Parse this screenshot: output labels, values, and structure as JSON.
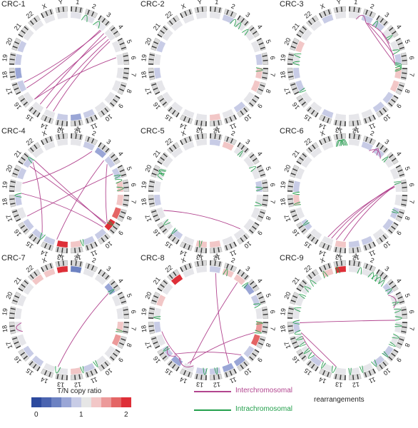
{
  "colors": {
    "inter": "#b2458f",
    "intra": "#23a04c",
    "scale": [
      "#2d4a9e",
      "#4b64b0",
      "#6d82c2",
      "#9aa6d6",
      "#c8cce6",
      "#e6e6e6",
      "#f2c7c7",
      "#ec9a9a",
      "#e46565",
      "#de2f38"
    ]
  },
  "chromosomes": [
    "1",
    "2",
    "3",
    "4",
    "5",
    "6",
    "7",
    "8",
    "9",
    "10",
    "11",
    "12",
    "13",
    "14",
    "15",
    "16",
    "17",
    "18",
    "19",
    "20",
    "21",
    "22",
    "X",
    "Y"
  ],
  "panels": [
    {
      "title": "CRC-1",
      "cn": [
        "#e3e3ea",
        "#e2e2ea",
        "#e8e8ee",
        "#e6e6ea",
        "#e6e6ea",
        "#e6e6ea",
        "#e6e6ea",
        "#e6e6ea",
        "#e6e6ea",
        "#e6e6ea",
        "#c9cde6",
        "#9aa6d6",
        "#c8cce6",
        "#e6e6ea",
        "#e6e6ea",
        "#e6e6ea",
        "#c8cce6",
        "#9aa6d6",
        "#c8cce6",
        "#c8cce6",
        "#e6e6ea",
        "#e6e6ea",
        "#e6e6ea",
        "#e6e6ea"
      ],
      "inter": [
        [
          2.6,
          14.0
        ],
        [
          2.3,
          16.2
        ],
        [
          2.9,
          14.6
        ],
        [
          3.4,
          12.8
        ],
        [
          4.8,
          14.6
        ],
        [
          2.2,
          15.7
        ],
        [
          3.2,
          13.4
        ]
      ],
      "intra": [
        [
          0.5,
          0.95
        ],
        [
          1.5,
          2.0
        ]
      ]
    },
    {
      "title": "CRC-2",
      "cn": [
        "#e6e6ea",
        "#c8cce6",
        "#e6e6ea",
        "#e6e6ea",
        "#e6e6ea",
        "#c8cce6",
        "#f2c7c7",
        "#f2c7c7",
        "#e6e6ea",
        "#c8cce6",
        "#e6e6ea",
        "#f2c7c7",
        "#e6e6ea",
        "#e6e6ea",
        "#e6e6ea",
        "#e6e6ea",
        "#e6e6ea",
        "#c8cce6",
        "#e6e6ea",
        "#c8cce6",
        "#e6e6ea",
        "#e6e6ea",
        "#e6e6ea",
        "#e6e6ea"
      ],
      "inter": [],
      "intra": [
        [
          1.3,
          1.7
        ],
        [
          2.5,
          2.8
        ],
        [
          5.6,
          5.9
        ],
        [
          1.8,
          2.1
        ]
      ]
    },
    {
      "title": "CRC-3",
      "cn": [
        "#e6e6ea",
        "#c8cce6",
        "#c8cce6",
        "#e6e6ea",
        "#e6e6ea",
        "#c8cce6",
        "#f2c7c7",
        "#f2c7c7",
        "#c8cce6",
        "#c8cce6",
        "#e6e6ea",
        "#e6e6ea",
        "#e6e6ea",
        "#c8cce6",
        "#e6e6ea",
        "#e6e6ea",
        "#c8cce6",
        "#c8cce6",
        "#e6e6ea",
        "#f2c7c7",
        "#e6e6ea",
        "#e6e6ea",
        "#c8cce6",
        "#e6e6ea"
      ],
      "inter": [
        [
          1.0,
          5.3
        ],
        [
          0.2,
          1.0
        ],
        [
          1.2,
          3.6
        ],
        [
          2.6,
          5.4
        ],
        [
          1.1,
          4.6
        ]
      ],
      "intra": [
        [
          5.2,
          5.6
        ],
        [
          5.4,
          5.9
        ],
        [
          5.3,
          5.8
        ],
        [
          4.2,
          4.5
        ],
        [
          3.1,
          3.3
        ],
        [
          18.2,
          18.5
        ],
        [
          17.6,
          17.9
        ],
        [
          15.5,
          15.7
        ],
        [
          1.6,
          1.9
        ]
      ]
    },
    {
      "title": "CRC-4",
      "cn": [
        "#e6e6ea",
        "#c8cce6",
        "#9aa6d6",
        "#c8cce6",
        "#c8cce6",
        "#f2c7c7",
        "#f2c7c7",
        "#e46565",
        "#de2f38",
        "#c8cce6",
        "#c8cce6",
        "#f2c7c7",
        "#de2f38",
        "#c8cce6",
        "#c8cce6",
        "#c8cce6",
        "#e6e6ea",
        "#c8cce6",
        "#e6e6ea",
        "#c8cce6",
        "#c8cce6",
        "#e6e6ea",
        "#e6e6ea",
        "#e6e6ea"
      ],
      "inter": [
        [
          2.6,
          12.5
        ],
        [
          3.9,
          15.6
        ],
        [
          8.1,
          19.8
        ],
        [
          8.2,
          20.4
        ],
        [
          1.4,
          18.3
        ],
        [
          13.8,
          20.2
        ],
        [
          8.5,
          17.5
        ],
        [
          3.0,
          8.0
        ]
      ],
      "intra": [
        [
          4.4,
          4.7
        ],
        [
          5.0,
          5.3
        ],
        [
          4.1,
          4.3
        ],
        [
          7.8,
          8.0
        ],
        [
          13.5,
          13.8
        ],
        [
          17.2,
          17.5
        ],
        [
          10.4,
          10.6
        ],
        [
          20.1,
          20.4
        ]
      ]
    },
    {
      "title": "CRC-5",
      "cn": [
        "#c8cce6",
        "#f2c7c7",
        "#e6e6ea",
        "#e6e6ea",
        "#e6e6ea",
        "#c8cce6",
        "#e6e6ea",
        "#e6e6ea",
        "#e6e6ea",
        "#e6e6ea",
        "#e6e6ea",
        "#f2c7c7",
        "#f2c7c7",
        "#e6e6ea",
        "#c8cce6",
        "#e6e6ea",
        "#e6e6ea",
        "#c8cce6",
        "#e6e6ea",
        "#e6e6ea",
        "#e6e6ea",
        "#e6e6ea",
        "#e6e6ea",
        "#e6e6ea"
      ],
      "inter": [
        [
          16.1,
          8.7
        ]
      ],
      "intra": [
        [
          18.6,
          19.1
        ],
        [
          19.0,
          19.4
        ],
        [
          18.9,
          19.3
        ],
        [
          3.4,
          3.7
        ],
        [
          5.0,
          5.3
        ],
        [
          6.2,
          6.5
        ],
        [
          15.0,
          15.3
        ],
        [
          14.2,
          14.4
        ],
        [
          2.0,
          2.2
        ],
        [
          12.0,
          12.2
        ]
      ]
    },
    {
      "title": "CRC-6",
      "cn": [
        "#e6e6ea",
        "#c8cce6",
        "#c8cce6",
        "#e6e6ea",
        "#e6e6ea",
        "#e6e6ea",
        "#e6e6ea",
        "#c8cce6",
        "#c8cce6",
        "#e6e6ea",
        "#c8cce6",
        "#c8cce6",
        "#f2c7c7",
        "#e6e6ea",
        "#e6e6ea",
        "#c8cce6",
        "#e6e6ea",
        "#f2c7c7",
        "#c8cce6",
        "#e6e6ea",
        "#e6e6ea",
        "#e6e6ea",
        "#e6e6ea",
        "#e6e6ea"
      ],
      "inter": [
        [
          4.9,
          12.8
        ],
        [
          4.9,
          12.4
        ],
        [
          5.0,
          13.1
        ],
        [
          4.9,
          11.8
        ],
        [
          1.3,
          2.4
        ],
        [
          1.6,
          2.0
        ]
      ],
      "intra": [
        [
          22.6,
          23.2
        ],
        [
          22.9,
          23.4
        ],
        [
          23.0,
          23.5
        ],
        [
          22.7,
          23.3
        ],
        [
          15.0,
          15.2
        ],
        [
          16.6,
          16.8
        ],
        [
          4.6,
          4.8
        ],
        [
          2.6,
          2.8
        ],
        [
          6.8,
          7.0
        ],
        [
          17.4,
          17.6
        ]
      ]
    },
    {
      "title": "CRC-7",
      "cn": [
        "#6d82c2",
        "#e6e6ea",
        "#e6e6ea",
        "#9aa6d6",
        "#e6e6ea",
        "#e6e6ea",
        "#f2c7c7",
        "#ec9a9a",
        "#e6e6ea",
        "#e6e6ea",
        "#c8cce6",
        "#f2c7c7",
        "#e6e6ea",
        "#e6e6ea",
        "#c8cce6",
        "#c8cce6",
        "#e6e6ea",
        "#e6e6ea",
        "#e6e6ea",
        "#e6e6ea",
        "#e6e6ea",
        "#f2c7c7",
        "#f2c7c7",
        "#de2f38"
      ],
      "inter": [
        [
          12.4,
          3.2
        ],
        [
          16.6,
          17.3
        ]
      ],
      "intra": [
        [
          12.2,
          12.6
        ],
        [
          3.1,
          3.3
        ],
        [
          9.3,
          9.5
        ],
        [
          10.4,
          10.6
        ],
        [
          6.2,
          6.4
        ]
      ]
    },
    {
      "title": "CRC-8",
      "cn": [
        "#c8cce6",
        "#f2c7c7",
        "#f2c7c7",
        "#9aa6d6",
        "#c8cce6",
        "#e6e6ea",
        "#ec9a9a",
        "#e46565",
        "#c8cce6",
        "#9aa6d6",
        "#9aa6d6",
        "#c8cce6",
        "#c8cce6",
        "#e6e6ea",
        "#9aa6d6",
        "#c8cce6",
        "#e6e6ea",
        "#c8cce6",
        "#e6e6ea",
        "#f2c7c7",
        "#e6e6ea",
        "#de2f38",
        "#e6e6ea",
        "#e6e6ea"
      ],
      "inter": [
        [
          0.1,
          9.8
        ],
        [
          14.5,
          8.6
        ],
        [
          13.8,
          16.6
        ],
        [
          14.0,
          12.7
        ],
        [
          13.2,
          6.5
        ],
        [
          2.0,
          13.0
        ],
        [
          14.3,
          15.3
        ]
      ],
      "intra": [
        [
          4.2,
          4.5
        ],
        [
          5.6,
          5.8
        ],
        [
          6.3,
          6.5
        ],
        [
          10.8,
          11.0
        ],
        [
          11.6,
          11.9
        ],
        [
          0.7,
          1.0
        ],
        [
          2.5,
          2.7
        ],
        [
          17.6,
          17.8
        ],
        [
          15.1,
          15.3
        ]
      ]
    },
    {
      "title": "CRC-9",
      "cn": [
        "#e6e6ea",
        "#e6e6ea",
        "#e6e6ea",
        "#c8cce6",
        "#e6e6ea",
        "#e6e6ea",
        "#e6e6ea",
        "#e6e6ea",
        "#c8cce6",
        "#c8cce6",
        "#e6e6ea",
        "#e6e6ea",
        "#e6e6ea",
        "#e6e6ea",
        "#c8cce6",
        "#e6e6ea",
        "#e6e6ea",
        "#c8cce6",
        "#e6e6ea",
        "#e6e6ea",
        "#e6e6ea",
        "#e6e6ea",
        "#f2c7c7",
        "#de2f38"
      ],
      "inter": [
        [
          17.3,
          5.5
        ],
        [
          16.2,
          13.5
        ],
        [
          3.4,
          4.5
        ],
        [
          16.5,
          12.4
        ]
      ],
      "intra": [
        [
          1.2,
          1.6
        ],
        [
          1.5,
          1.9
        ],
        [
          2.2,
          2.5
        ],
        [
          3.0,
          3.3
        ],
        [
          4.6,
          4.9
        ],
        [
          5.2,
          5.5
        ],
        [
          5.8,
          6.0
        ],
        [
          6.6,
          6.9
        ],
        [
          7.3,
          7.5
        ],
        [
          8.2,
          8.4
        ],
        [
          9.2,
          9.5
        ],
        [
          10.3,
          10.5
        ],
        [
          11.2,
          11.4
        ],
        [
          12.4,
          12.7
        ],
        [
          13.3,
          13.5
        ],
        [
          14.4,
          14.7
        ],
        [
          15.5,
          15.7
        ],
        [
          16.4,
          16.7
        ],
        [
          17.2,
          17.5
        ],
        [
          18.2,
          18.5
        ],
        [
          19.3,
          19.5
        ],
        [
          20.5,
          20.8
        ],
        [
          21.6,
          21.9
        ],
        [
          22.6,
          22.9
        ],
        [
          0.3,
          0.6
        ],
        [
          1.8,
          2.2
        ],
        [
          4.1,
          4.3
        ],
        [
          14.9,
          15.1
        ],
        [
          16.0,
          16.2
        ],
        [
          19.9,
          20.2
        ]
      ]
    }
  ],
  "legend": {
    "title": "T/N copy ratio",
    "ticks": [
      "0",
      "1",
      "2"
    ],
    "inter_label": "Interchromosomal",
    "intra_label": "Intrachromosomal",
    "suffix": "rearrangements"
  }
}
